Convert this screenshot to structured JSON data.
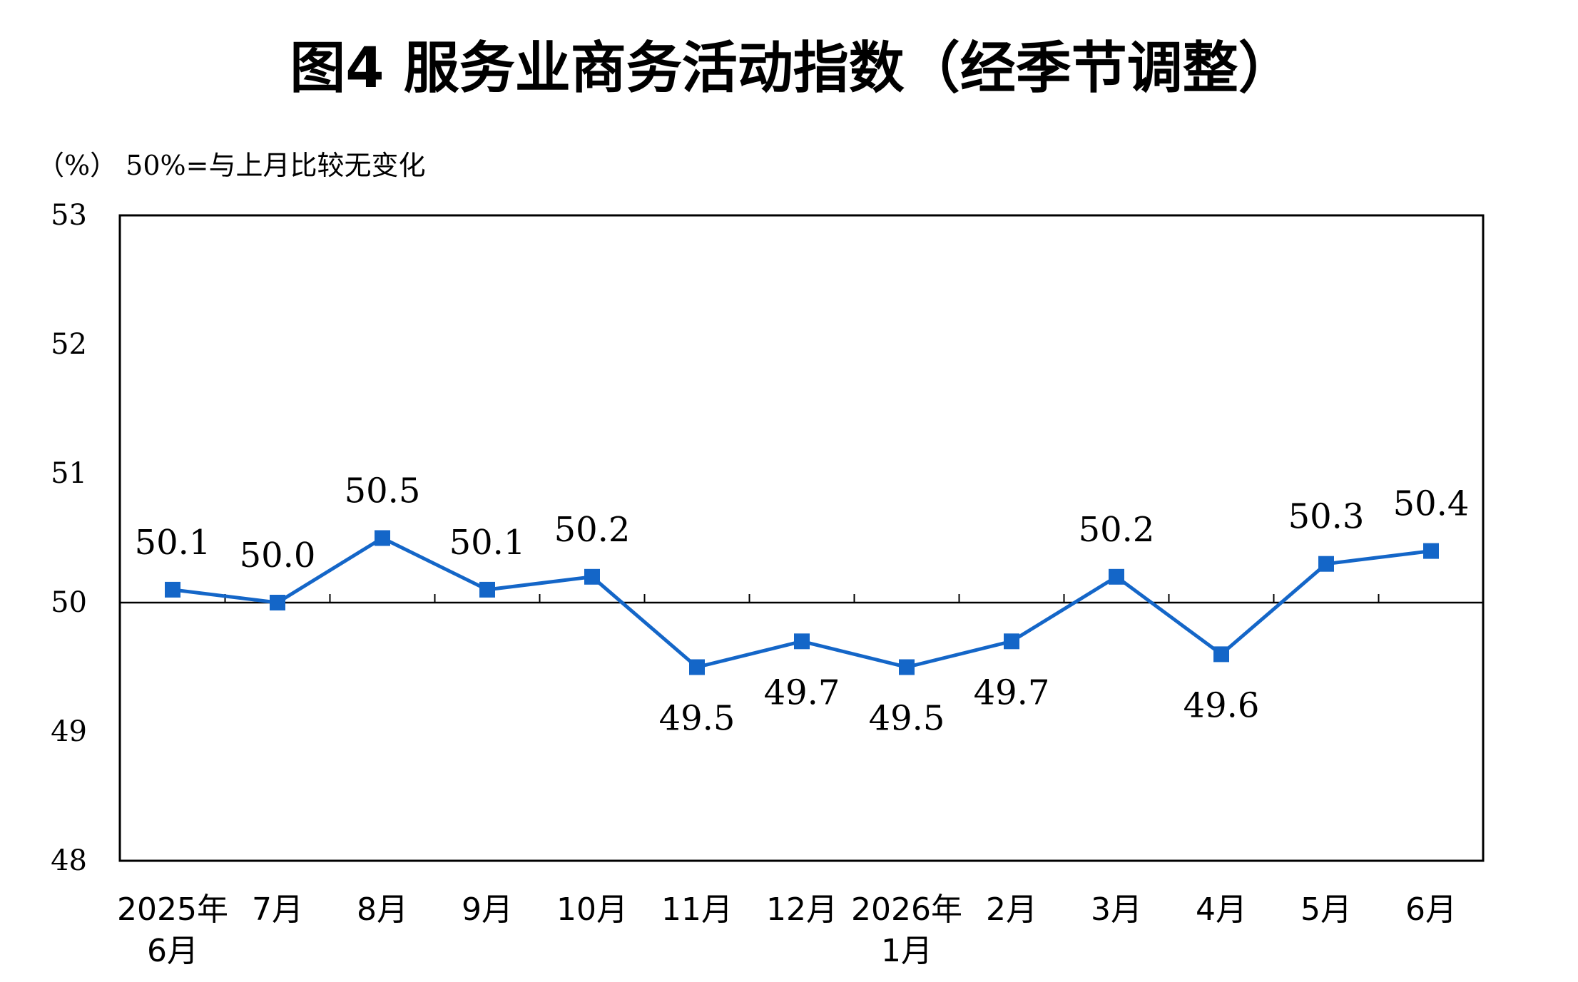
{
  "chart_data": {
    "type": "line",
    "title": "图4  服务业商务活动指数（经季节调整）",
    "unit_note": "（%） 50%=与上月比较无变化",
    "categories": [
      [
        "2025年",
        "6月"
      ],
      [
        "7月"
      ],
      [
        "8月"
      ],
      [
        "9月"
      ],
      [
        "10月"
      ],
      [
        "11月"
      ],
      [
        "12月"
      ],
      [
        "2026年",
        "1月"
      ],
      [
        "2月"
      ],
      [
        "3月"
      ],
      [
        "4月"
      ],
      [
        "5月"
      ],
      [
        "6月"
      ]
    ],
    "values": [
      50.1,
      50.0,
      50.5,
      50.1,
      50.2,
      49.5,
      49.7,
      49.5,
      49.7,
      50.2,
      49.6,
      50.3,
      50.4
    ],
    "data_labels": [
      "50.1",
      "50.0",
      "50.5",
      "50.1",
      "50.2",
      "49.5",
      "49.7",
      "49.5",
      "49.7",
      "50.2",
      "49.6",
      "50.3",
      "50.4"
    ],
    "ylim": [
      48,
      53
    ],
    "yticks": [
      "48",
      "49",
      "50",
      "51",
      "52",
      "53"
    ],
    "reference_line": 50,
    "grid": false,
    "legend": "none",
    "colors": {
      "series": "#1466c8",
      "axis": "#000000",
      "text": "#000000"
    }
  }
}
